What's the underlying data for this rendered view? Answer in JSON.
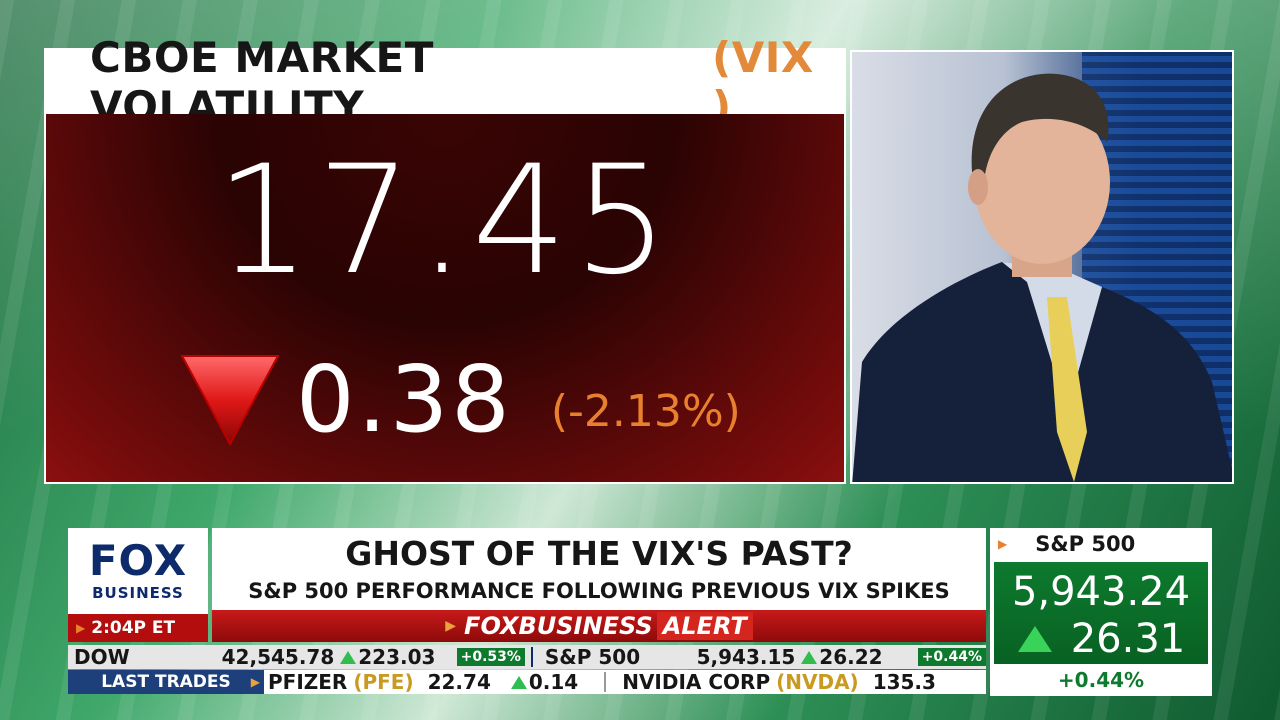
{
  "vix": {
    "title": "CBOE MARKET VOLATILITY",
    "symbol": "(VIX )",
    "price": "17.45",
    "change": "0.38",
    "change_pct": "(-2.13%)",
    "direction": "down",
    "panel_color": "#7a0c0c",
    "accent_color": "#e8802e"
  },
  "video": {
    "description_icon": "anchor-video-feed"
  },
  "brand": {
    "logo_top": "FOX",
    "logo_bottom": "BUSINESS",
    "time": "2:04P ET"
  },
  "headline": {
    "line1": "GHOST OF THE VIX'S PAST?",
    "line2": "S&P 500 PERFORMANCE FOLLOWING PREVIOUS VIX SPIKES",
    "alert_brand": "FOXBUSINESS",
    "alert_word": "ALERT"
  },
  "sp500_box": {
    "label": "S&P 500",
    "value": "5,943.24",
    "change": "26.31",
    "change_pct": "+0.44%",
    "direction": "up",
    "color": "#0d7a2e"
  },
  "ticker": {
    "indices": [
      {
        "name": "DOW",
        "value": "42,545.78",
        "change": "223.03",
        "pct": "+0.53%"
      },
      {
        "name": "S&P 500",
        "value": "5,943.15",
        "change": "26.22",
        "pct": "+0.44%"
      }
    ],
    "last_trades_label": "LAST TRADES",
    "trades": [
      {
        "name": "PFIZER",
        "symbol": "(PFE)",
        "value": "22.74",
        "change": "0.14"
      },
      {
        "name": "NVIDIA CORP",
        "symbol": "(NVDA)",
        "value": "135.3",
        "change": ""
      }
    ]
  }
}
